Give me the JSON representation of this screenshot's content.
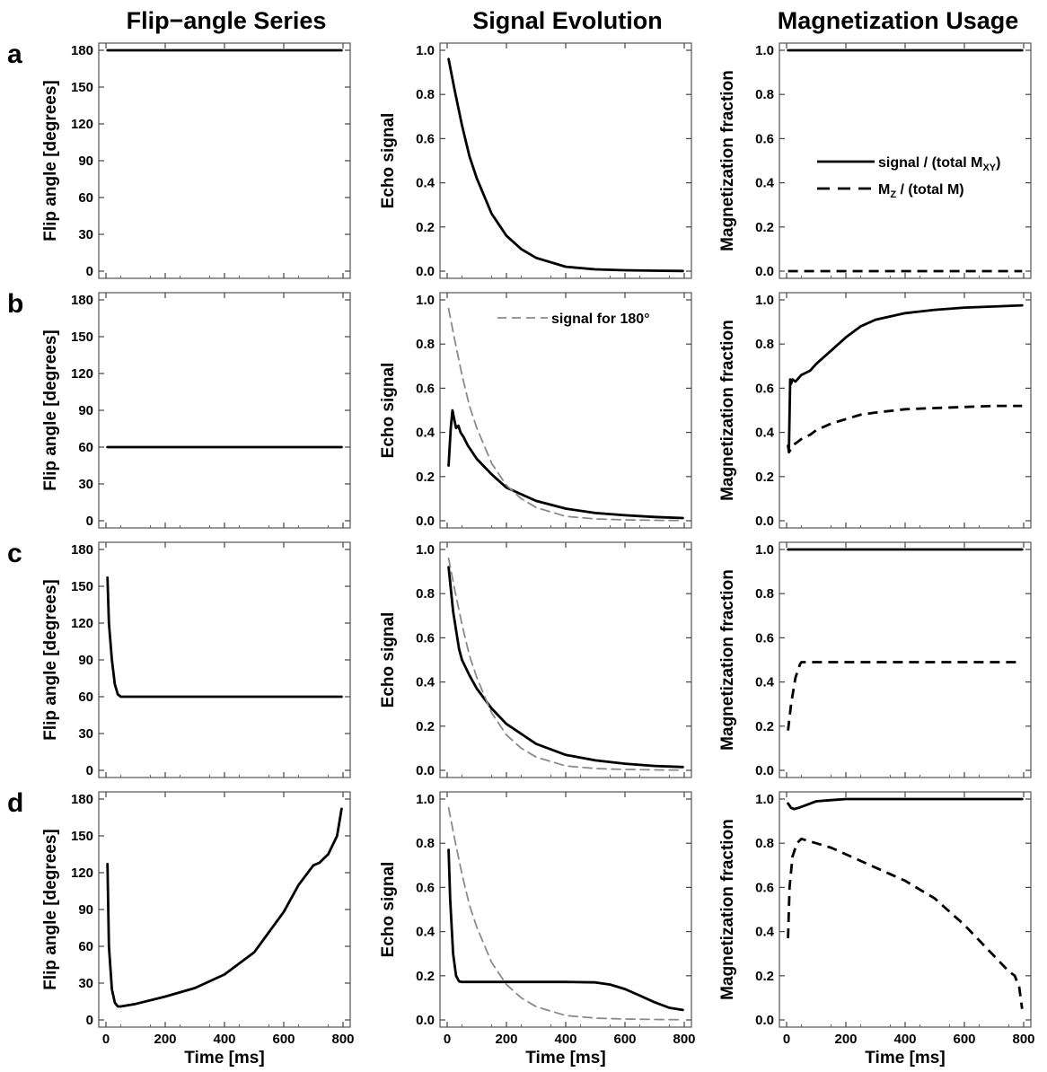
{
  "figure": {
    "column_titles": [
      "Flip−angle Series",
      "Signal Evolution",
      "Magnetization Usage"
    ],
    "row_letters": [
      "a",
      "b",
      "c",
      "d"
    ],
    "x_label": "Time [ms]"
  },
  "chart_data": [
    {
      "id": "a-flip",
      "type": "line",
      "xlabel": "",
      "ylabel": "Flip angle [degrees]",
      "xlim": [
        0,
        800
      ],
      "ylim": [
        0,
        180
      ],
      "xticks": [
        0,
        200,
        400,
        600,
        800
      ],
      "yticks": [
        0,
        30,
        60,
        90,
        120,
        150,
        180
      ],
      "series": [
        {
          "style": "solid",
          "x": [
            5,
            795
          ],
          "y": [
            180,
            180
          ]
        }
      ]
    },
    {
      "id": "a-signal",
      "type": "line",
      "xlabel": "",
      "ylabel": "Echo signal",
      "xlim": [
        0,
        800
      ],
      "ylim": [
        0,
        1
      ],
      "xticks": [
        0,
        200,
        400,
        600,
        800
      ],
      "yticks": [
        0,
        0.2,
        0.4,
        0.6,
        0.8,
        1.0
      ],
      "series": [
        {
          "style": "solid",
          "x": [
            5,
            25,
            50,
            75,
            100,
            150,
            200,
            250,
            300,
            400,
            500,
            600,
            700,
            795
          ],
          "y": [
            0.96,
            0.82,
            0.66,
            0.52,
            0.42,
            0.26,
            0.16,
            0.1,
            0.06,
            0.02,
            0.008,
            0.004,
            0.002,
            0.001
          ]
        }
      ]
    },
    {
      "id": "a-usage",
      "type": "line",
      "xlabel": "",
      "ylabel": "Magnetization fraction",
      "xlim": [
        0,
        800
      ],
      "ylim": [
        0,
        1
      ],
      "xticks": [
        0,
        200,
        400,
        600,
        800
      ],
      "yticks": [
        0,
        0.2,
        0.4,
        0.6,
        0.8,
        1.0
      ],
      "legend": {
        "position": "center-right",
        "entries": [
          {
            "label": "signal / (total M",
            "sub": "XY",
            "tail": ")",
            "style": "solid"
          },
          {
            "label": "M",
            "sub": "Z",
            "tail": " / (total M)",
            "style": "dashed"
          }
        ]
      },
      "series": [
        {
          "style": "solid",
          "x": [
            5,
            795
          ],
          "y": [
            1.0,
            1.0
          ]
        },
        {
          "style": "dashed",
          "x": [
            5,
            795
          ],
          "y": [
            0.0,
            0.0
          ]
        }
      ]
    },
    {
      "id": "b-flip",
      "type": "line",
      "xlabel": "",
      "ylabel": "Flip angle [degrees]",
      "xlim": [
        0,
        800
      ],
      "ylim": [
        0,
        180
      ],
      "xticks": [
        0,
        200,
        400,
        600,
        800
      ],
      "yticks": [
        0,
        30,
        60,
        90,
        120,
        150,
        180
      ],
      "series": [
        {
          "style": "solid",
          "x": [
            5,
            795
          ],
          "y": [
            60,
            60
          ]
        }
      ]
    },
    {
      "id": "b-signal",
      "type": "line",
      "xlabel": "",
      "ylabel": "Echo signal",
      "xlim": [
        0,
        800
      ],
      "ylim": [
        0,
        1
      ],
      "xticks": [
        0,
        200,
        400,
        600,
        800
      ],
      "yticks": [
        0,
        0.2,
        0.4,
        0.6,
        0.8,
        1.0
      ],
      "legend": {
        "position": "top-right",
        "entries": [
          {
            "label": "signal for 180°",
            "style": "dashed-gray"
          }
        ]
      },
      "series": [
        {
          "style": "solid",
          "x": [
            5,
            12,
            18,
            25,
            30,
            38,
            45,
            55,
            70,
            100,
            150,
            200,
            300,
            400,
            500,
            600,
            700,
            795
          ],
          "y": [
            0.25,
            0.42,
            0.5,
            0.45,
            0.42,
            0.43,
            0.4,
            0.38,
            0.34,
            0.28,
            0.21,
            0.15,
            0.09,
            0.055,
            0.035,
            0.025,
            0.017,
            0.012
          ]
        },
        {
          "style": "dashed-gray",
          "x": [
            5,
            25,
            50,
            75,
            100,
            150,
            200,
            250,
            300,
            400,
            500,
            600,
            700,
            795
          ],
          "y": [
            0.96,
            0.82,
            0.66,
            0.52,
            0.42,
            0.26,
            0.16,
            0.1,
            0.06,
            0.02,
            0.008,
            0.004,
            0.002,
            0.001
          ]
        }
      ]
    },
    {
      "id": "b-usage",
      "type": "line",
      "xlabel": "",
      "ylabel": "Magnetization fraction",
      "xlim": [
        0,
        800
      ],
      "ylim": [
        0,
        1
      ],
      "xticks": [
        0,
        200,
        400,
        600,
        800
      ],
      "yticks": [
        0,
        0.2,
        0.4,
        0.6,
        0.8,
        1.0
      ],
      "series": [
        {
          "style": "solid",
          "x": [
            5,
            8,
            12,
            15,
            20,
            30,
            50,
            80,
            100,
            150,
            200,
            250,
            300,
            400,
            500,
            600,
            700,
            795
          ],
          "y": [
            0.34,
            0.32,
            0.64,
            0.62,
            0.64,
            0.63,
            0.66,
            0.68,
            0.71,
            0.77,
            0.83,
            0.88,
            0.91,
            0.94,
            0.955,
            0.965,
            0.97,
            0.975
          ]
        },
        {
          "style": "dashed",
          "x": [
            5,
            8,
            12,
            20,
            30,
            50,
            80,
            100,
            150,
            200,
            250,
            300,
            400,
            500,
            600,
            700,
            795
          ],
          "y": [
            0.34,
            0.31,
            0.32,
            0.34,
            0.35,
            0.37,
            0.39,
            0.41,
            0.44,
            0.46,
            0.48,
            0.49,
            0.505,
            0.51,
            0.515,
            0.52,
            0.52
          ]
        }
      ]
    },
    {
      "id": "c-flip",
      "type": "line",
      "xlabel": "",
      "ylabel": "Flip angle [degrees]",
      "xlim": [
        0,
        800
      ],
      "ylim": [
        0,
        180
      ],
      "xticks": [
        0,
        200,
        400,
        600,
        800
      ],
      "yticks": [
        0,
        30,
        60,
        90,
        120,
        150,
        180
      ],
      "series": [
        {
          "style": "solid",
          "x": [
            5,
            10,
            20,
            30,
            40,
            50,
            100,
            200,
            400,
            600,
            795
          ],
          "y": [
            157,
            120,
            90,
            70,
            62,
            60,
            60,
            60,
            60,
            60,
            60
          ]
        }
      ]
    },
    {
      "id": "c-signal",
      "type": "line",
      "xlabel": "",
      "ylabel": "Echo signal",
      "xlim": [
        0,
        800
      ],
      "ylim": [
        0,
        1
      ],
      "xticks": [
        0,
        200,
        400,
        600,
        800
      ],
      "yticks": [
        0,
        0.2,
        0.4,
        0.6,
        0.8,
        1.0
      ],
      "series": [
        {
          "style": "solid",
          "x": [
            5,
            20,
            40,
            50,
            75,
            100,
            150,
            200,
            300,
            400,
            500,
            600,
            700,
            795
          ],
          "y": [
            0.92,
            0.72,
            0.55,
            0.5,
            0.43,
            0.37,
            0.28,
            0.21,
            0.12,
            0.07,
            0.045,
            0.03,
            0.02,
            0.015
          ]
        },
        {
          "style": "dashed-gray",
          "x": [
            5,
            25,
            50,
            75,
            100,
            150,
            200,
            250,
            300,
            400,
            500,
            600,
            700,
            795
          ],
          "y": [
            0.96,
            0.82,
            0.66,
            0.52,
            0.42,
            0.26,
            0.16,
            0.1,
            0.06,
            0.02,
            0.008,
            0.004,
            0.002,
            0.001
          ]
        }
      ]
    },
    {
      "id": "c-usage",
      "type": "line",
      "xlabel": "",
      "ylabel": "Magnetization fraction",
      "xlim": [
        0,
        800
      ],
      "ylim": [
        0,
        1
      ],
      "xticks": [
        0,
        200,
        400,
        600,
        800
      ],
      "yticks": [
        0,
        0.2,
        0.4,
        0.6,
        0.8,
        1.0
      ],
      "series": [
        {
          "style": "solid",
          "x": [
            5,
            795
          ],
          "y": [
            1.0,
            1.0
          ]
        },
        {
          "style": "dashed",
          "x": [
            5,
            15,
            30,
            45,
            50,
            100,
            200,
            400,
            600,
            795
          ],
          "y": [
            0.18,
            0.3,
            0.42,
            0.48,
            0.49,
            0.49,
            0.49,
            0.49,
            0.49,
            0.49
          ]
        }
      ]
    },
    {
      "id": "d-flip",
      "type": "line",
      "xlabel": "Time [ms]",
      "ylabel": "Flip angle [degrees]",
      "xlim": [
        0,
        800
      ],
      "ylim": [
        0,
        180
      ],
      "xticks": [
        0,
        200,
        400,
        600,
        800
      ],
      "yticks": [
        0,
        30,
        60,
        90,
        120,
        150,
        180
      ],
      "series": [
        {
          "style": "solid",
          "x": [
            5,
            10,
            20,
            30,
            40,
            50,
            100,
            200,
            300,
            400,
            500,
            600,
            650,
            700,
            720,
            750,
            780,
            795
          ],
          "y": [
            127,
            60,
            25,
            14,
            11,
            11,
            13,
            19,
            26,
            37,
            55,
            88,
            110,
            126,
            128,
            135,
            150,
            172
          ]
        }
      ]
    },
    {
      "id": "d-signal",
      "type": "line",
      "xlabel": "Time [ms]",
      "ylabel": "Echo signal",
      "xlim": [
        0,
        800
      ],
      "ylim": [
        0,
        1
      ],
      "xticks": [
        0,
        200,
        400,
        600,
        800
      ],
      "yticks": [
        0,
        0.2,
        0.4,
        0.6,
        0.8,
        1.0
      ],
      "series": [
        {
          "style": "solid",
          "x": [
            5,
            10,
            20,
            30,
            40,
            50,
            100,
            200,
            400,
            500,
            550,
            600,
            650,
            700,
            750,
            795
          ],
          "y": [
            0.77,
            0.55,
            0.3,
            0.2,
            0.175,
            0.172,
            0.172,
            0.172,
            0.172,
            0.17,
            0.16,
            0.14,
            0.11,
            0.08,
            0.055,
            0.045
          ]
        },
        {
          "style": "dashed-gray",
          "x": [
            5,
            25,
            50,
            75,
            100,
            150,
            200,
            250,
            300,
            400,
            500,
            600,
            700,
            795
          ],
          "y": [
            0.96,
            0.82,
            0.66,
            0.52,
            0.42,
            0.26,
            0.16,
            0.1,
            0.06,
            0.02,
            0.008,
            0.004,
            0.002,
            0.001
          ]
        }
      ]
    },
    {
      "id": "d-usage",
      "type": "line",
      "xlabel": "Time [ms]",
      "ylabel": "Magnetization fraction",
      "xlim": [
        0,
        800
      ],
      "ylim": [
        0,
        1
      ],
      "xticks": [
        0,
        200,
        400,
        600,
        800
      ],
      "yticks": [
        0,
        0.2,
        0.4,
        0.6,
        0.8,
        1.0
      ],
      "series": [
        {
          "style": "solid",
          "x": [
            5,
            15,
            25,
            40,
            60,
            80,
            100,
            150,
            200,
            400,
            600,
            795
          ],
          "y": [
            0.98,
            0.96,
            0.955,
            0.96,
            0.97,
            0.98,
            0.99,
            0.995,
            1.0,
            1.0,
            1.0,
            1.0
          ]
        },
        {
          "style": "dashed",
          "x": [
            5,
            10,
            20,
            35,
            50,
            100,
            150,
            200,
            300,
            400,
            500,
            600,
            650,
            700,
            750,
            770,
            785,
            795
          ],
          "y": [
            0.37,
            0.6,
            0.74,
            0.8,
            0.82,
            0.8,
            0.78,
            0.75,
            0.69,
            0.63,
            0.55,
            0.43,
            0.36,
            0.29,
            0.22,
            0.2,
            0.15,
            0.05
          ]
        }
      ]
    }
  ]
}
